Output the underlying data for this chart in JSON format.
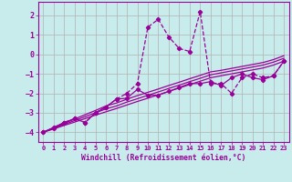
{
  "background_color": "#c8ecec",
  "grid_color": "#b0b0b0",
  "line_color": "#990099",
  "xlabel": "Windchill (Refroidissement éolien,°C)",
  "xlim": [
    -0.5,
    23.5
  ],
  "ylim": [
    -4.5,
    2.7
  ],
  "yticks": [
    -4,
    -3,
    -2,
    -1,
    0,
    1,
    2
  ],
  "xticks": [
    0,
    1,
    2,
    3,
    4,
    5,
    6,
    7,
    8,
    9,
    10,
    11,
    12,
    13,
    14,
    15,
    16,
    17,
    18,
    19,
    20,
    21,
    22,
    23
  ],
  "line1_x": [
    0,
    1,
    2,
    3,
    4,
    5,
    6,
    7,
    8,
    9,
    10,
    11,
    12,
    13,
    14,
    15,
    16,
    17,
    18,
    19,
    20,
    21,
    22,
    23
  ],
  "line1_y": [
    -4.0,
    -3.83,
    -3.65,
    -3.48,
    -3.3,
    -3.12,
    -2.95,
    -2.78,
    -2.6,
    -2.42,
    -2.25,
    -2.08,
    -1.9,
    -1.73,
    -1.55,
    -1.38,
    -1.2,
    -1.1,
    -1.0,
    -0.9,
    -0.8,
    -0.7,
    -0.55,
    -0.35
  ],
  "line2_x": [
    0,
    1,
    2,
    3,
    4,
    5,
    6,
    7,
    8,
    9,
    10,
    11,
    12,
    13,
    14,
    15,
    16,
    17,
    18,
    19,
    20,
    21,
    22,
    23
  ],
  "line2_y": [
    -4.0,
    -3.8,
    -3.6,
    -3.4,
    -3.2,
    -3.0,
    -2.8,
    -2.65,
    -2.45,
    -2.28,
    -2.1,
    -1.93,
    -1.75,
    -1.58,
    -1.4,
    -1.23,
    -1.05,
    -0.95,
    -0.85,
    -0.75,
    -0.65,
    -0.55,
    -0.4,
    -0.2
  ],
  "line3_x": [
    0,
    1,
    2,
    3,
    4,
    5,
    6,
    7,
    8,
    9,
    10,
    11,
    12,
    13,
    14,
    15,
    16,
    17,
    18,
    19,
    20,
    21,
    22,
    23
  ],
  "line3_y": [
    -4.0,
    -3.77,
    -3.55,
    -3.32,
    -3.1,
    -2.88,
    -2.65,
    -2.5,
    -2.3,
    -2.12,
    -1.95,
    -1.78,
    -1.6,
    -1.43,
    -1.25,
    -1.08,
    -0.9,
    -0.82,
    -0.72,
    -0.62,
    -0.52,
    -0.42,
    -0.27,
    -0.07
  ],
  "line4_x": [
    0,
    1,
    2,
    3,
    4,
    5,
    6,
    7,
    8,
    9,
    10,
    11,
    12,
    13,
    14,
    15,
    16,
    17,
    18,
    19,
    20,
    21,
    22,
    23
  ],
  "line4_y": [
    -4.0,
    -3.75,
    -3.5,
    -3.3,
    -3.5,
    -3.0,
    -2.7,
    -2.3,
    -2.25,
    -1.8,
    -2.1,
    -2.1,
    -1.9,
    -1.7,
    -1.5,
    -1.5,
    -1.4,
    -1.6,
    -1.2,
    -1.0,
    -1.2,
    -1.3,
    -1.1,
    -0.35
  ],
  "line5_x": [
    0,
    1,
    2,
    3,
    4,
    5,
    6,
    7,
    8,
    9,
    10,
    11,
    12,
    13,
    14,
    15,
    16,
    17,
    18,
    19,
    20,
    21,
    22,
    23
  ],
  "line5_y": [
    -4.0,
    -3.8,
    -3.5,
    -3.3,
    -3.5,
    -3.0,
    -2.7,
    -2.3,
    -2.0,
    -1.5,
    1.4,
    1.8,
    0.9,
    0.3,
    0.15,
    2.2,
    -1.5,
    -1.5,
    -2.0,
    -1.2,
    -1.0,
    -1.2,
    -1.1,
    -0.35
  ]
}
